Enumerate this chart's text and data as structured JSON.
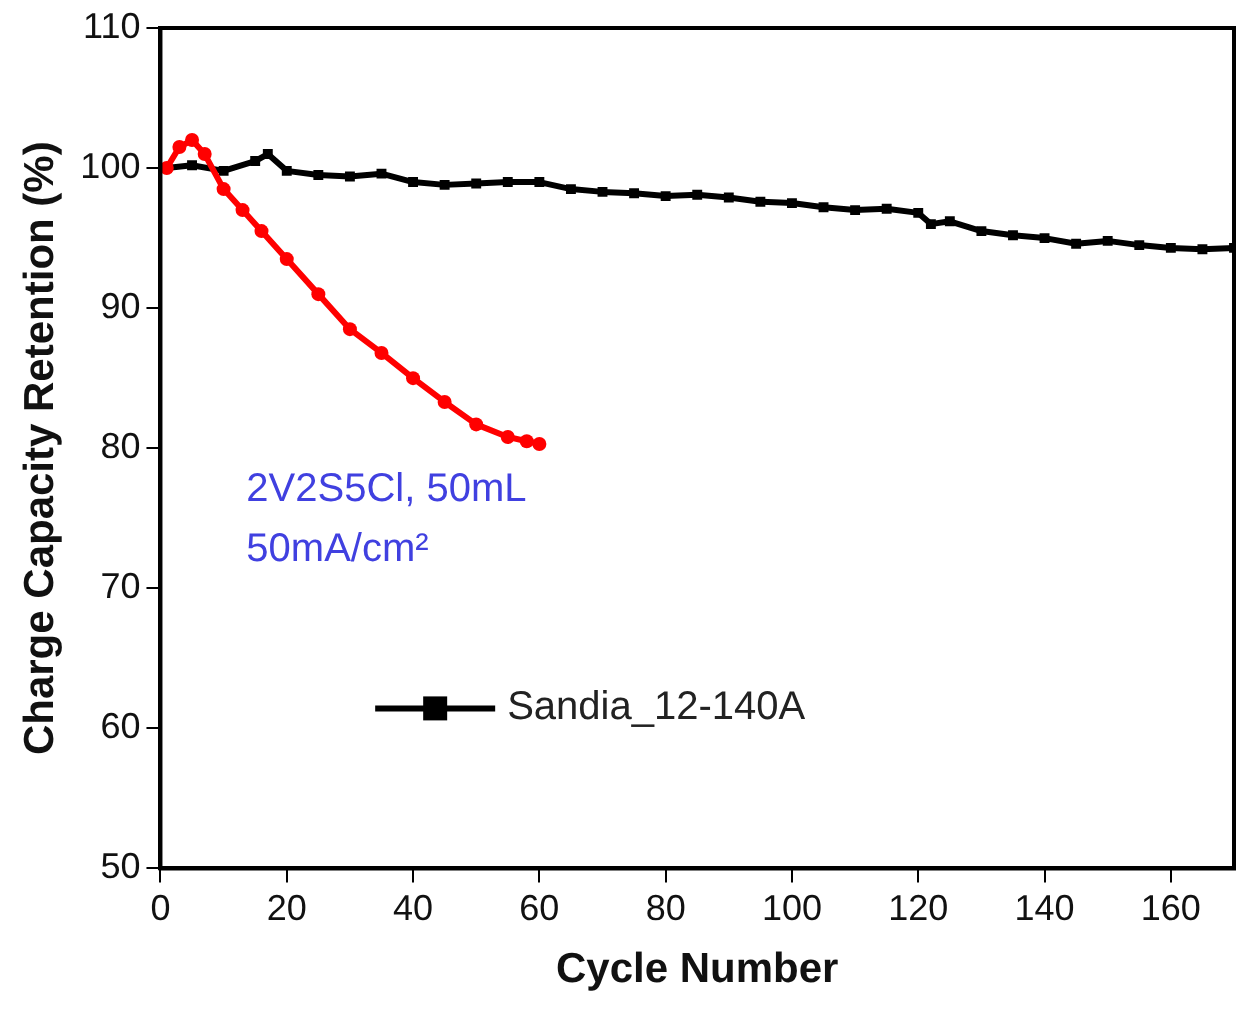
{
  "chart_data": {
    "type": "line",
    "xlabel": "Cycle Number",
    "ylabel": "Charge Capacity Retention (%)",
    "xlim": [
      0,
      170
    ],
    "xticks": [
      0,
      20,
      40,
      60,
      80,
      100,
      120,
      140,
      160
    ],
    "ylim": [
      50,
      110
    ],
    "yticks": [
      50,
      60,
      70,
      80,
      90,
      100,
      110
    ],
    "legend": "bottom left",
    "grid": false,
    "annotations": [
      "2V2S5Cl, 50mL",
      "50mA/cm²"
    ],
    "series": [
      {
        "name": "Sandia_12-140A",
        "color": "#000000",
        "marker": "square",
        "x": [
          1,
          5,
          10,
          15,
          17,
          20,
          25,
          30,
          35,
          40,
          45,
          50,
          55,
          60,
          65,
          70,
          75,
          80,
          85,
          90,
          95,
          100,
          105,
          110,
          115,
          120,
          122,
          125,
          130,
          135,
          140,
          145,
          150,
          155,
          160,
          165,
          170
        ],
        "values": [
          100,
          100.2,
          99.8,
          100.5,
          101,
          99.8,
          99.5,
          99.4,
          99.6,
          99,
          98.8,
          98.9,
          99,
          99,
          98.5,
          98.3,
          98.2,
          98,
          98.1,
          97.9,
          97.6,
          97.5,
          97.2,
          97,
          97.1,
          96.8,
          96,
          96.2,
          95.5,
          95.2,
          95,
          94.6,
          94.8,
          94.5,
          94.3,
          94.2,
          94.3
        ]
      },
      {
        "color": "#ff0000",
        "marker": "circle",
        "x": [
          1,
          3,
          5,
          7,
          10,
          13,
          16,
          20,
          25,
          30,
          35,
          40,
          45,
          50,
          55,
          58,
          60
        ],
        "values": [
          100,
          101.5,
          102,
          101,
          98.5,
          97,
          95.5,
          93.5,
          91,
          88.5,
          86.8,
          85,
          83.3,
          81.7,
          80.8,
          80.5,
          80.3
        ]
      }
    ]
  }
}
